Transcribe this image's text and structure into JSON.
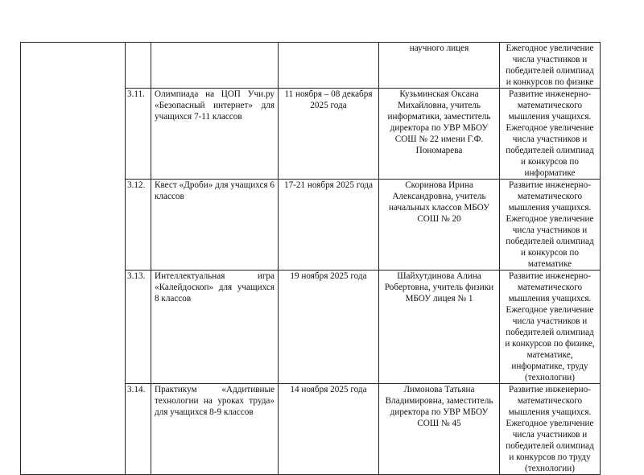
{
  "rows": [
    {
      "num": "",
      "event": "",
      "dates": "",
      "responsible": "научного лицея",
      "result": "Ежегодное увеличение числа участников и победителей олимпиад и конкурсов по физике"
    },
    {
      "num": "3.11.",
      "event": "Олимпиада на ЦОП Учи.ру «Безопасный интернет» для учащихся 7-11 классов",
      "dates": "11 ноября – 08 декабря 2025 года",
      "responsible": "Кузьминская Оксана Михайловна, учитель информатики, заместитель директора по УВР МБОУ СОШ № 22 имени Г.Ф. Пономарева",
      "result": "Развитие инженерно-математического мышления учащихся. Ежегодное увеличение числа участников и победителей олимпиад и конкурсов по информатике"
    },
    {
      "num": "3.12.",
      "event": "Квест «Дроби» для учащихся 6 классов",
      "dates": "17-21 ноября 2025 года",
      "responsible": "Скоринова Ирина Александровна, учитель начальных классов МБОУ СОШ № 20",
      "result": "Развитие инженерно-математического мышления учащихся. Ежегодное увеличение числа участников и победителей олимпиад и конкурсов по математике"
    },
    {
      "num": "3.13.",
      "event": "Интеллектуальная игра «Калейдоскоп» для учащихся 8 классов",
      "dates": "19 ноября 2025 года",
      "responsible": "Шайхутдинова Алина Робертовна, учитель физики МБОУ лицея № 1",
      "result": "Развитие инженерно-математического мышления учащихся. Ежегодное увеличение числа участников и победителей олимпиад и конкурсов по физике, математике, информатике, труду (технологии)"
    },
    {
      "num": "3.14.",
      "event": "Практикум «Аддитивные технологии на уроках труда» для учащихся 8-9 классов",
      "dates": "14 ноября 2025 года",
      "responsible": "Лимонова Татьяна Владимировна, заместитель директора по УВР МБОУ СОШ № 45",
      "result": "Развитие инженерно-математического мышления учащихся. Ежегодное увеличение числа участников и победителей олимпиад и конкурсов по труду (технологии)"
    }
  ]
}
